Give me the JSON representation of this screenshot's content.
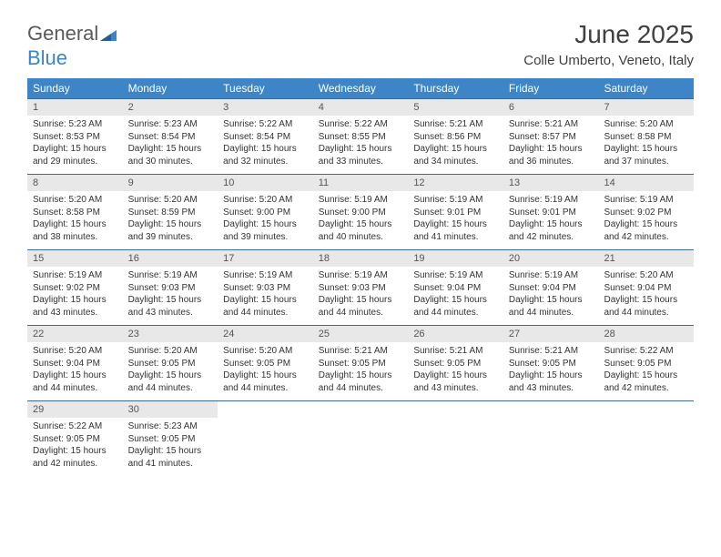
{
  "logo": {
    "text1": "General",
    "text2": "Blue"
  },
  "header": {
    "month_title": "June 2025",
    "location": "Colle Umberto, Veneto, Italy"
  },
  "colors": {
    "header_bg": "#3d85c6",
    "header_text": "#ffffff",
    "daynum_bg": "#e8e8e8",
    "daynum_text": "#555555",
    "body_text": "#333333",
    "divider": "#3d6b99",
    "logo_gray": "#5a5a5a",
    "logo_blue": "#3d85c6"
  },
  "weekdays": [
    "Sunday",
    "Monday",
    "Tuesday",
    "Wednesday",
    "Thursday",
    "Friday",
    "Saturday"
  ],
  "days": [
    {
      "n": "1",
      "sunrise": "5:23 AM",
      "sunset": "8:53 PM",
      "dl_h": "15",
      "dl_m": "29"
    },
    {
      "n": "2",
      "sunrise": "5:23 AM",
      "sunset": "8:54 PM",
      "dl_h": "15",
      "dl_m": "30"
    },
    {
      "n": "3",
      "sunrise": "5:22 AM",
      "sunset": "8:54 PM",
      "dl_h": "15",
      "dl_m": "32"
    },
    {
      "n": "4",
      "sunrise": "5:22 AM",
      "sunset": "8:55 PM",
      "dl_h": "15",
      "dl_m": "33"
    },
    {
      "n": "5",
      "sunrise": "5:21 AM",
      "sunset": "8:56 PM",
      "dl_h": "15",
      "dl_m": "34"
    },
    {
      "n": "6",
      "sunrise": "5:21 AM",
      "sunset": "8:57 PM",
      "dl_h": "15",
      "dl_m": "36"
    },
    {
      "n": "7",
      "sunrise": "5:20 AM",
      "sunset": "8:58 PM",
      "dl_h": "15",
      "dl_m": "37"
    },
    {
      "n": "8",
      "sunrise": "5:20 AM",
      "sunset": "8:58 PM",
      "dl_h": "15",
      "dl_m": "38"
    },
    {
      "n": "9",
      "sunrise": "5:20 AM",
      "sunset": "8:59 PM",
      "dl_h": "15",
      "dl_m": "39"
    },
    {
      "n": "10",
      "sunrise": "5:20 AM",
      "sunset": "9:00 PM",
      "dl_h": "15",
      "dl_m": "39"
    },
    {
      "n": "11",
      "sunrise": "5:19 AM",
      "sunset": "9:00 PM",
      "dl_h": "15",
      "dl_m": "40"
    },
    {
      "n": "12",
      "sunrise": "5:19 AM",
      "sunset": "9:01 PM",
      "dl_h": "15",
      "dl_m": "41"
    },
    {
      "n": "13",
      "sunrise": "5:19 AM",
      "sunset": "9:01 PM",
      "dl_h": "15",
      "dl_m": "42"
    },
    {
      "n": "14",
      "sunrise": "5:19 AM",
      "sunset": "9:02 PM",
      "dl_h": "15",
      "dl_m": "42"
    },
    {
      "n": "15",
      "sunrise": "5:19 AM",
      "sunset": "9:02 PM",
      "dl_h": "15",
      "dl_m": "43"
    },
    {
      "n": "16",
      "sunrise": "5:19 AM",
      "sunset": "9:03 PM",
      "dl_h": "15",
      "dl_m": "43"
    },
    {
      "n": "17",
      "sunrise": "5:19 AM",
      "sunset": "9:03 PM",
      "dl_h": "15",
      "dl_m": "44"
    },
    {
      "n": "18",
      "sunrise": "5:19 AM",
      "sunset": "9:03 PM",
      "dl_h": "15",
      "dl_m": "44"
    },
    {
      "n": "19",
      "sunrise": "5:19 AM",
      "sunset": "9:04 PM",
      "dl_h": "15",
      "dl_m": "44"
    },
    {
      "n": "20",
      "sunrise": "5:19 AM",
      "sunset": "9:04 PM",
      "dl_h": "15",
      "dl_m": "44"
    },
    {
      "n": "21",
      "sunrise": "5:20 AM",
      "sunset": "9:04 PM",
      "dl_h": "15",
      "dl_m": "44"
    },
    {
      "n": "22",
      "sunrise": "5:20 AM",
      "sunset": "9:04 PM",
      "dl_h": "15",
      "dl_m": "44"
    },
    {
      "n": "23",
      "sunrise": "5:20 AM",
      "sunset": "9:05 PM",
      "dl_h": "15",
      "dl_m": "44"
    },
    {
      "n": "24",
      "sunrise": "5:20 AM",
      "sunset": "9:05 PM",
      "dl_h": "15",
      "dl_m": "44"
    },
    {
      "n": "25",
      "sunrise": "5:21 AM",
      "sunset": "9:05 PM",
      "dl_h": "15",
      "dl_m": "44"
    },
    {
      "n": "26",
      "sunrise": "5:21 AM",
      "sunset": "9:05 PM",
      "dl_h": "15",
      "dl_m": "43"
    },
    {
      "n": "27",
      "sunrise": "5:21 AM",
      "sunset": "9:05 PM",
      "dl_h": "15",
      "dl_m": "43"
    },
    {
      "n": "28",
      "sunrise": "5:22 AM",
      "sunset": "9:05 PM",
      "dl_h": "15",
      "dl_m": "42"
    },
    {
      "n": "29",
      "sunrise": "5:22 AM",
      "sunset": "9:05 PM",
      "dl_h": "15",
      "dl_m": "42"
    },
    {
      "n": "30",
      "sunrise": "5:23 AM",
      "sunset": "9:05 PM",
      "dl_h": "15",
      "dl_m": "41"
    }
  ],
  "labels": {
    "sunrise": "Sunrise:",
    "sunset": "Sunset:",
    "daylight_prefix": "Daylight:",
    "hours_word": "hours",
    "and_word": "and",
    "minutes_word": "minutes."
  },
  "layout": {
    "first_day_column": 0,
    "total_days": 30,
    "columns": 7
  }
}
